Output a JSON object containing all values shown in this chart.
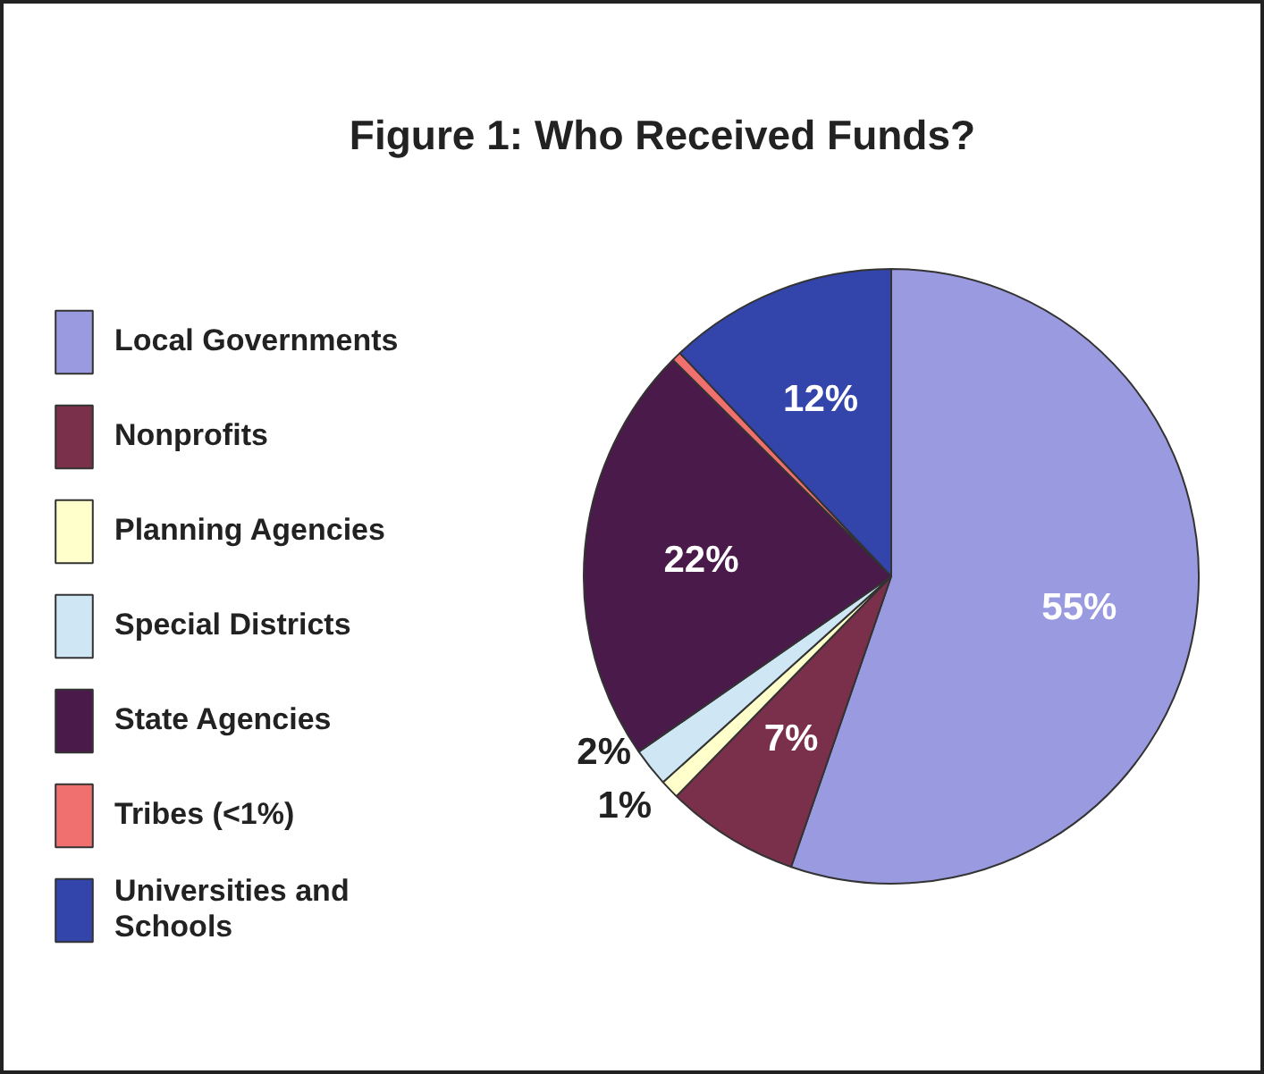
{
  "chart_data": {
    "type": "pie",
    "title": "Figure 1: Who Received Funds?",
    "categories": [
      "Local Governments",
      "Nonprofits",
      "Planning Agencies",
      "Special Districts",
      "State Agencies",
      "Tribes (<1%)",
      "Universities and Schools"
    ],
    "values": [
      55,
      7,
      1,
      2,
      22,
      0.5,
      12
    ],
    "value_labels": [
      "55%",
      "7%",
      "1%",
      "2%",
      "22%",
      null,
      "12%"
    ],
    "colors": [
      "#9a9ae0",
      "#7a2f4a",
      "#ffffcc",
      "#cfe6f5",
      "#4a1a4a",
      "#f07070",
      "#3344aa"
    ],
    "legend": "left"
  }
}
